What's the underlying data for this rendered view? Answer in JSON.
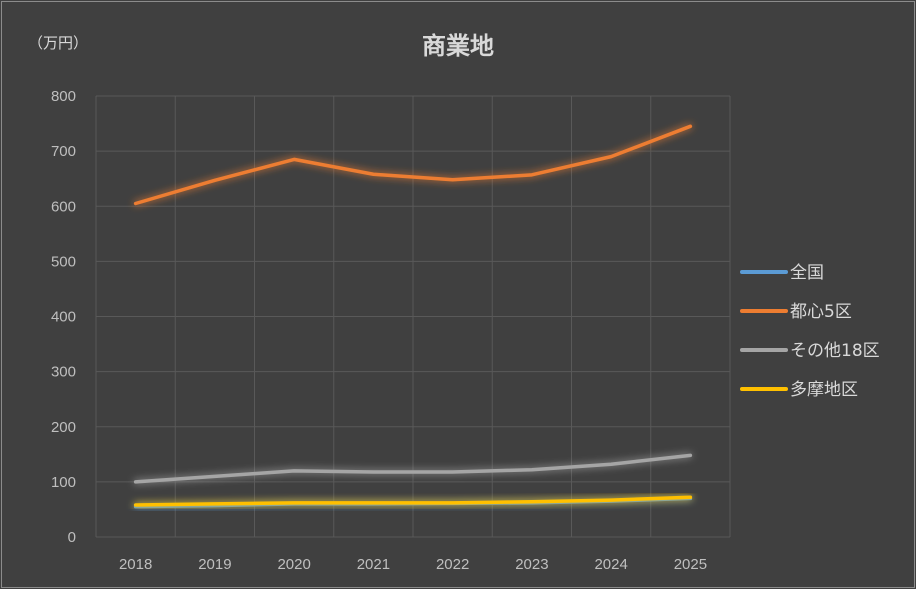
{
  "chart_data": {
    "type": "line",
    "title": "商業地",
    "ylabel": "（万円）",
    "xlabel": "",
    "categories": [
      "2018",
      "2019",
      "2020",
      "2021",
      "2022",
      "2023",
      "2024",
      "2025"
    ],
    "ylim": [
      0,
      800
    ],
    "yticks": [
      0,
      100,
      200,
      300,
      400,
      500,
      600,
      700,
      800
    ],
    "grid": true,
    "legend_position": "right",
    "series": [
      {
        "name": "全国",
        "color": "#5b9bd5",
        "values": [
          55,
          57,
          60,
          60,
          61,
          62,
          65,
          70
        ]
      },
      {
        "name": "都心5区",
        "color": "#ed7d31",
        "values": [
          605,
          647,
          685,
          658,
          648,
          657,
          690,
          745
        ]
      },
      {
        "name": "その他18区",
        "color": "#a5a5a5",
        "values": [
          100,
          110,
          120,
          118,
          118,
          122,
          132,
          148
        ]
      },
      {
        "name": "多摩地区",
        "color": "#ffc000",
        "values": [
          58,
          60,
          62,
          62,
          62,
          64,
          67,
          72
        ]
      }
    ]
  }
}
